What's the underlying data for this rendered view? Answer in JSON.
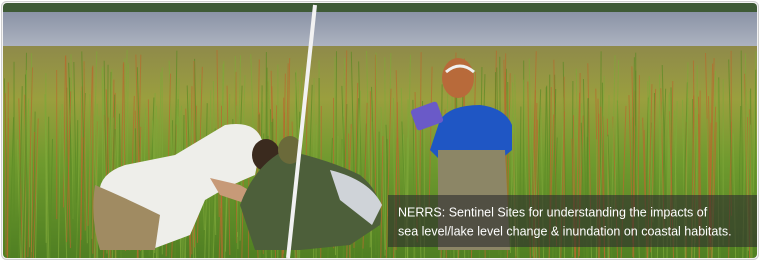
{
  "caption": {
    "lines": [
      "NERRS: Sentinel Sites for understanding the impacts of",
      "sea level/lake level change & inundation on coastal habitats."
    ]
  }
}
